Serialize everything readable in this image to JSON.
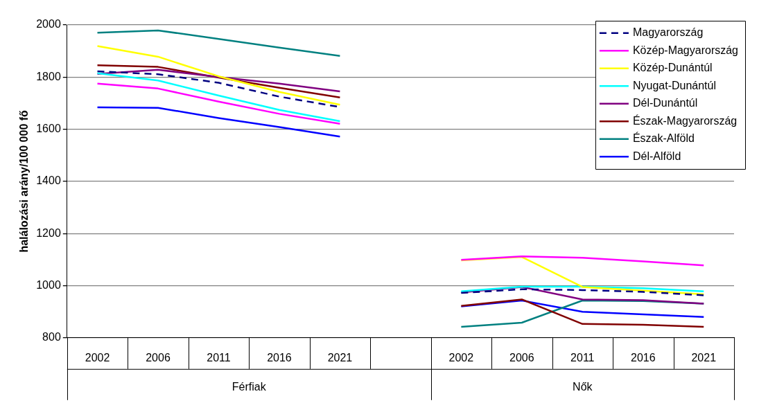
{
  "chart_data": {
    "type": "line",
    "ylabel": "halálozási arány/100 000 fő",
    "categories": [
      "2002",
      "2006",
      "2011",
      "2016",
      "2021",
      null,
      "2002",
      "2006",
      "2011",
      "2016",
      "2021"
    ],
    "annotations": [
      "Férfiak",
      "Nők"
    ],
    "ylim": [
      800,
      2000
    ],
    "yticks": [
      800,
      1000,
      1200,
      1400,
      1600,
      1800,
      2000
    ],
    "grid": "y",
    "legend": "top right",
    "marker": "none",
    "series": [
      {
        "name": "Magyarország",
        "color": "#000080",
        "line_style": "dashed",
        "values": [
          1822,
          1811,
          1778,
          1725,
          1685,
          null,
          972,
          986,
          983,
          976,
          963
        ]
      },
      {
        "name": "Közép-Magyarország",
        "color": "#ff00ff",
        "values": [
          1775,
          1756,
          1706,
          1659,
          1621,
          null,
          1099,
          1112,
          1107,
          1093,
          1078
        ]
      },
      {
        "name": "Közép-Dunántúl",
        "color": "#ffff00",
        "values": [
          1919,
          1878,
          1803,
          1743,
          1694,
          null,
          1097,
          1110,
          995,
          981,
          967
        ]
      },
      {
        "name": "Nyugat-Dunántúl",
        "color": "#00ffff",
        "values": [
          1815,
          1787,
          1729,
          1674,
          1631,
          null,
          978,
          996,
          996,
          990,
          978
        ]
      },
      {
        "name": "Dél-Dunántúl",
        "color": "#800080",
        "values": [
          1812,
          1828,
          1800,
          1775,
          1745,
          null,
          974,
          995,
          947,
          944,
          931
        ]
      },
      {
        "name": "Észak-Magyarország",
        "color": "#800000",
        "values": [
          1845,
          1839,
          1798,
          1759,
          1722,
          null,
          922,
          947,
          853,
          850,
          842
        ]
      },
      {
        "name": "Észak-Alföld",
        "color": "#008080",
        "values": [
          1970,
          1979,
          1946,
          1913,
          1881,
          null,
          842,
          858,
          943,
          941,
          931
        ]
      },
      {
        "name": "Dél-Alföld",
        "color": "#0000ff",
        "values": [
          1684,
          1682,
          1643,
          1608,
          1572,
          null,
          920,
          943,
          900,
          890,
          880
        ]
      }
    ]
  }
}
